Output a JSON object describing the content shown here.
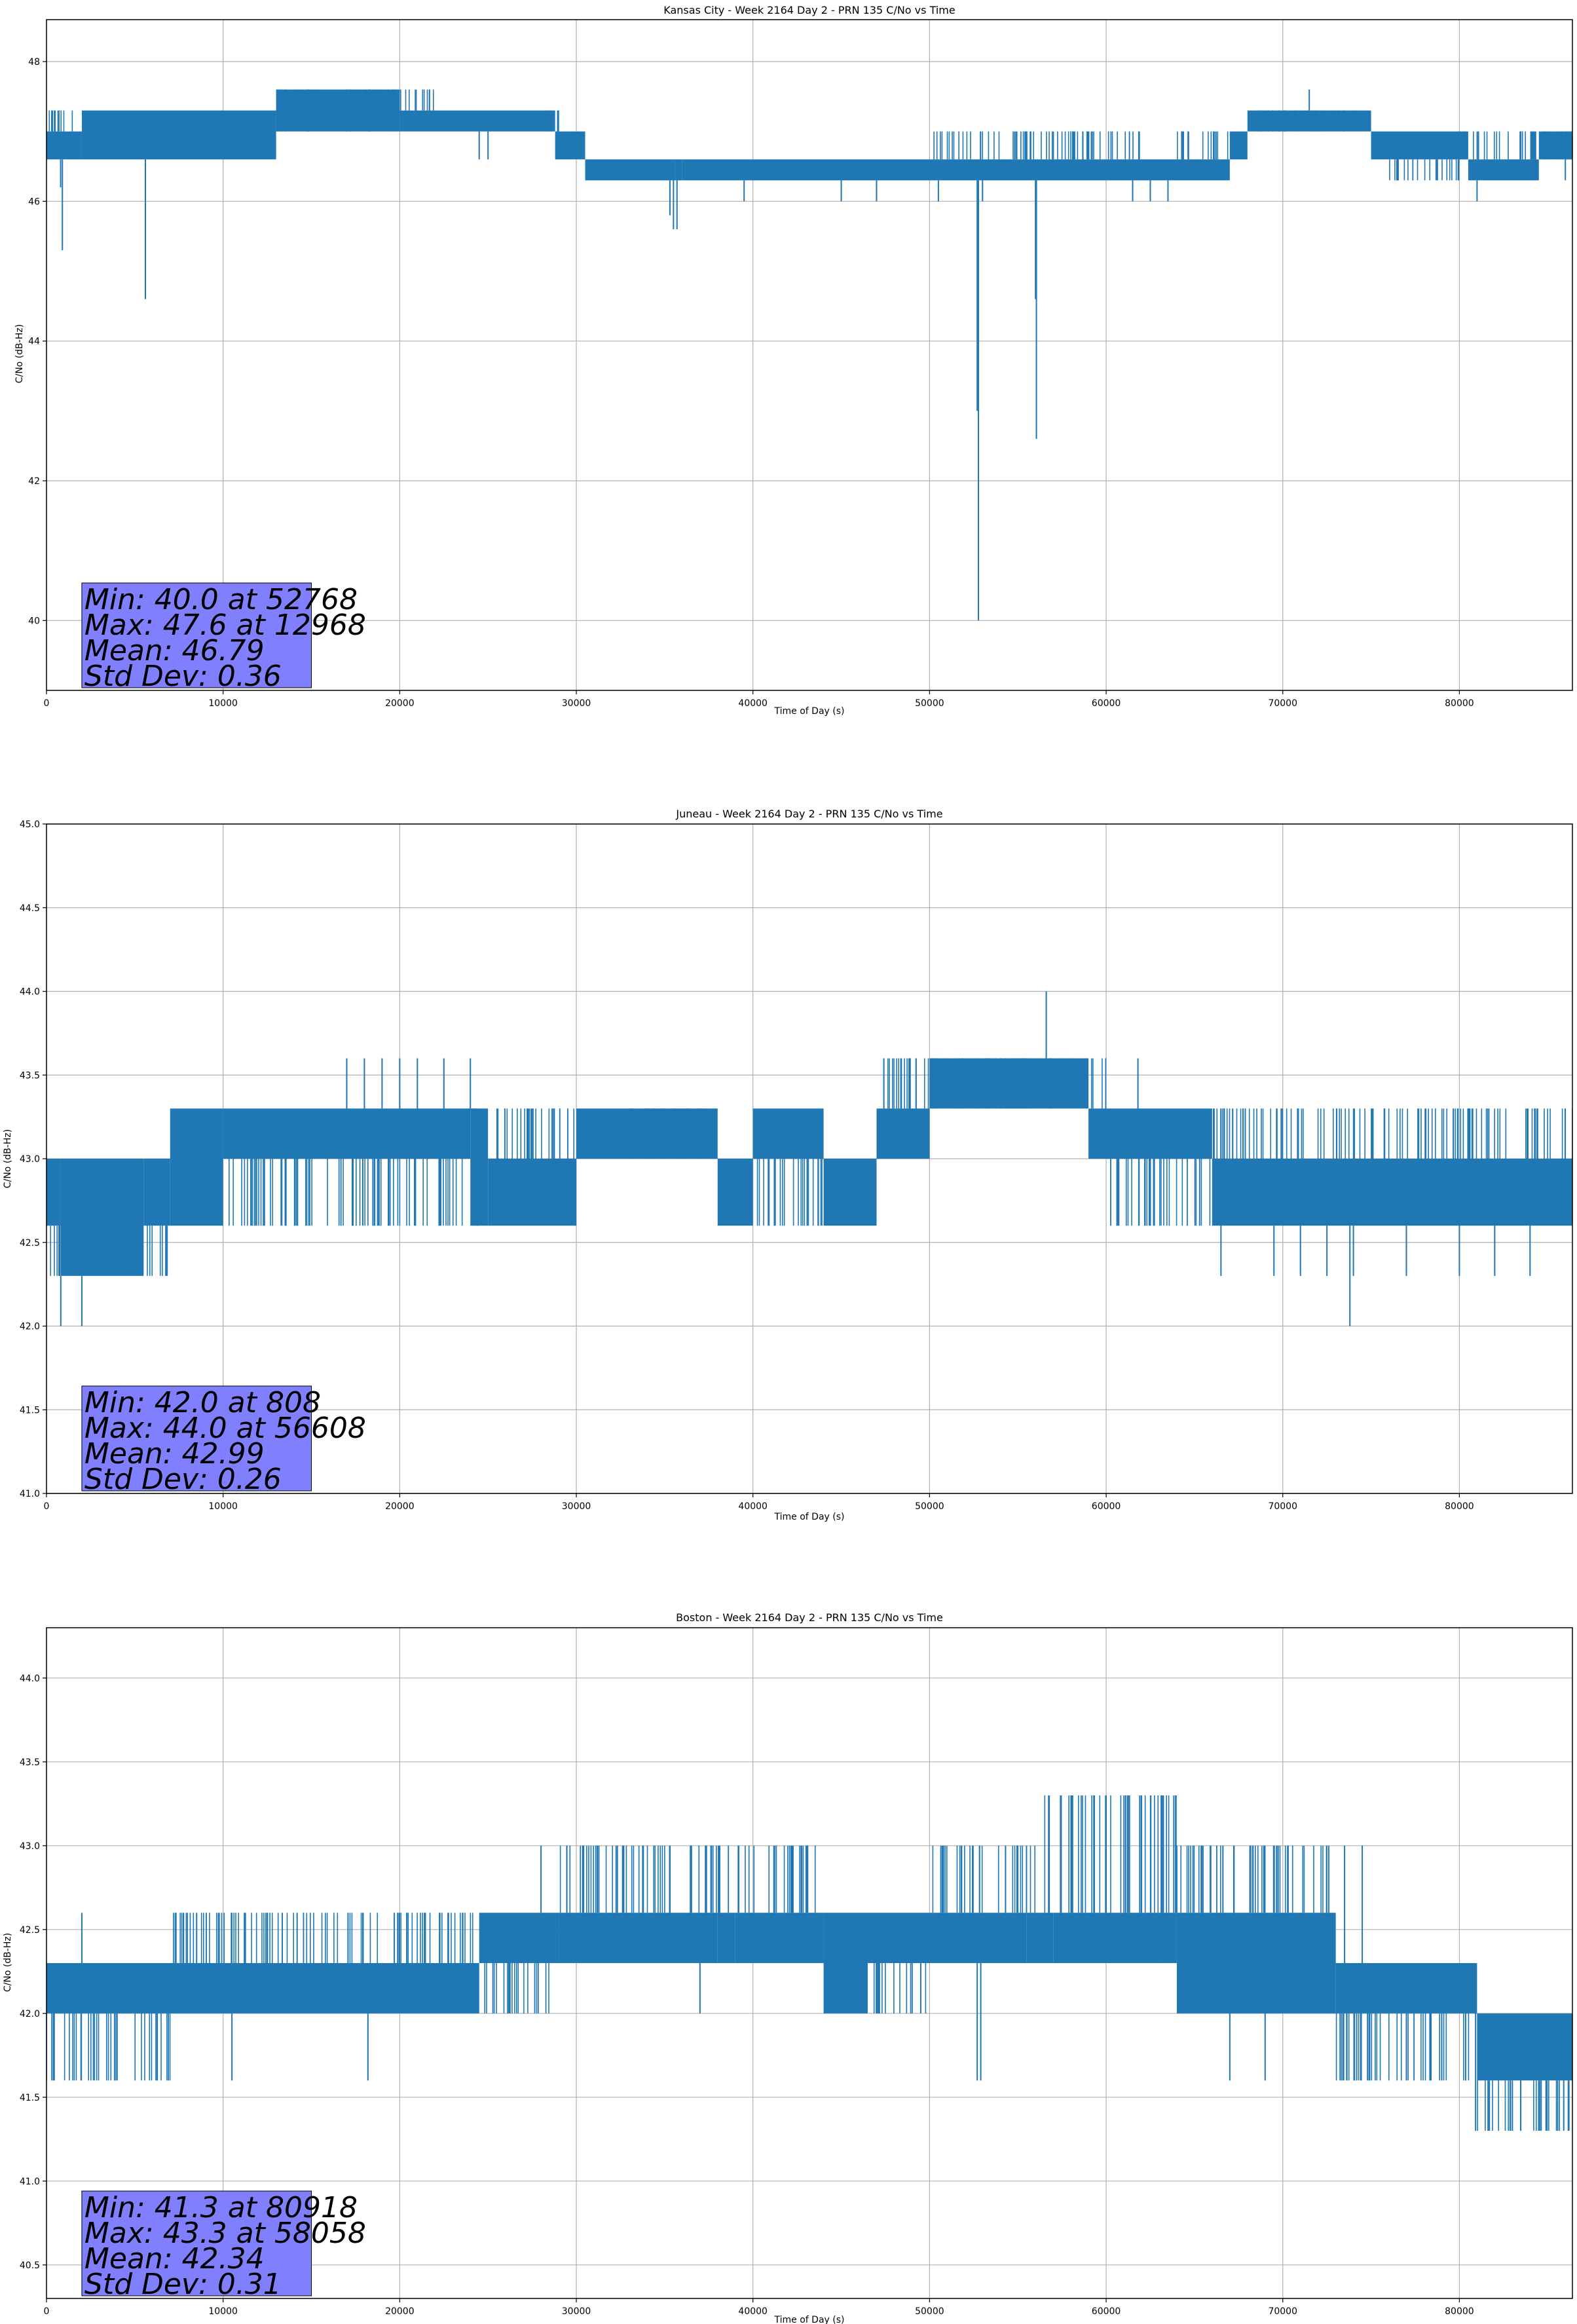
{
  "chart_data": [
    {
      "type": "line",
      "title": "Kansas City - Week 2164 Day 2 - PRN 135 C/No vs Time",
      "xlabel": "Time of Day (s)",
      "ylabel": "C/No (dB-Hz)",
      "xlim": [
        0,
        86400
      ],
      "ylim": [
        39.0,
        48.6
      ],
      "xticks": [
        0,
        10000,
        20000,
        30000,
        40000,
        50000,
        60000,
        70000,
        80000
      ],
      "yticks": [
        40,
        42,
        44,
        46,
        48
      ],
      "ytick_labels": [
        "40",
        "42",
        "44",
        "46",
        "48"
      ],
      "grid": true,
      "series_color": "#1f77b4",
      "stats_box_color": "#8080ff",
      "stats": [
        "Min: 40.0 at 52768",
        "Max: 47.6 at 12968",
        "Mean: 46.79",
        "Std Dev: 0.36"
      ],
      "series": [
        {
          "segments": [
            [
              0,
              46.6,
              47.0
            ],
            [
              2000,
              46.6,
              47.3
            ],
            [
              13000,
              47.0,
              47.6
            ],
            [
              20000,
              47.0,
              47.3
            ],
            [
              28800,
              46.6,
              47.0
            ],
            [
              30500,
              46.3,
              46.6
            ],
            [
              35600,
              46.3,
              46.6
            ],
            [
              36000,
              46.3,
              46.6
            ],
            [
              60000,
              46.3,
              46.6
            ],
            [
              62000,
              46.3,
              46.6
            ],
            [
              67000,
              46.6,
              47.0
            ],
            [
              68000,
              47.0,
              47.3
            ],
            [
              75000,
              46.6,
              47.0
            ],
            [
              80500,
              46.3,
              46.6
            ],
            [
              84500,
              46.6,
              47.0
            ],
            [
              86400
            ]
          ],
          "spikes": [
            [
              800,
              46.2
            ],
            [
              900,
              45.3
            ],
            [
              5600,
              44.6
            ],
            [
              6700,
              46.6
            ],
            [
              24500,
              46.6
            ],
            [
              25000,
              46.6
            ],
            [
              35300,
              45.8
            ],
            [
              35500,
              45.6
            ],
            [
              35700,
              45.6
            ],
            [
              39500,
              46.0
            ],
            [
              45000,
              46.0
            ],
            [
              47000,
              46.0
            ],
            [
              50500,
              46.0
            ],
            [
              52700,
              43.0
            ],
            [
              52768,
              40.0
            ],
            [
              53000,
              46.0
            ],
            [
              56000,
              44.6
            ],
            [
              56050,
              42.6
            ],
            [
              61500,
              46.0
            ],
            [
              62500,
              46.0
            ],
            [
              63500,
              46.0
            ],
            [
              64500,
              46.3
            ],
            [
              66500,
              46.3
            ],
            [
              71500,
              47.6
            ],
            [
              76500,
              46.3
            ],
            [
              81000,
              46.0
            ],
            [
              83000,
              46.3
            ],
            [
              86000,
              46.3
            ]
          ],
          "bursts": [
            [
              0,
              2000,
              47.3
            ],
            [
              13000,
              15500,
              47.6
            ],
            [
              16800,
              22000,
              47.6
            ],
            [
              28000,
              29000,
              47.3
            ],
            [
              38000,
              49000,
              46.3
            ],
            [
              50000,
              62000,
              47.0
            ],
            [
              64000,
              67000,
              47.0
            ],
            [
              68500,
              74000,
              47.3
            ],
            [
              76000,
              80000,
              46.3
            ],
            [
              80000,
              86400,
              47.0
            ]
          ]
        }
      ]
    },
    {
      "type": "line",
      "title": "Juneau - Week 2164 Day 2 - PRN 135 C/No vs Time",
      "xlabel": "Time of Day (s)",
      "ylabel": "C/No (dB-Hz)",
      "xlim": [
        0,
        86400
      ],
      "ylim": [
        41.0,
        45.0
      ],
      "xticks": [
        0,
        10000,
        20000,
        30000,
        40000,
        50000,
        60000,
        70000,
        80000
      ],
      "yticks": [
        41.0,
        41.5,
        42.0,
        42.5,
        43.0,
        43.5,
        44.0,
        44.5,
        45.0
      ],
      "ytick_labels": [
        "41.0",
        "41.5",
        "42.0",
        "42.5",
        "43.0",
        "43.5",
        "44.0",
        "44.5",
        "45.0"
      ],
      "grid": true,
      "series_color": "#1f77b4",
      "stats_box_color": "#8080ff",
      "stats": [
        "Min: 42.0 at 808",
        "Max: 44.0 at 56608",
        "Mean: 42.99",
        "Std Dev: 0.26"
      ],
      "series": [
        {
          "segments": [
            [
              0,
              42.6,
              43.0
            ],
            [
              800,
              42.3,
              43.0
            ],
            [
              5500,
              42.6,
              43.0
            ],
            [
              7000,
              42.6,
              43.3
            ],
            [
              10000,
              43.0,
              43.3
            ],
            [
              24000,
              42.6,
              43.3
            ],
            [
              25000,
              42.6,
              43.0
            ],
            [
              30000,
              43.0,
              43.3
            ],
            [
              38000,
              42.6,
              43.0
            ],
            [
              40000,
              43.0,
              43.3
            ],
            [
              44000,
              42.6,
              43.0
            ],
            [
              47000,
              43.0,
              43.3
            ],
            [
              50000,
              43.3,
              43.6
            ],
            [
              59000,
              43.0,
              43.3
            ],
            [
              66000,
              42.6,
              43.0
            ],
            [
              86400
            ]
          ],
          "spikes": [
            [
              808,
              42.0
            ],
            [
              2000,
              42.0
            ],
            [
              17000,
              43.6
            ],
            [
              18000,
              43.6
            ],
            [
              19000,
              43.6
            ],
            [
              20000,
              43.6
            ],
            [
              21000,
              43.6
            ],
            [
              22500,
              43.6
            ],
            [
              24000,
              43.6
            ],
            [
              56608,
              44.0
            ],
            [
              61800,
              43.6
            ],
            [
              62500,
              42.6
            ],
            [
              66500,
              42.3
            ],
            [
              69500,
              42.3
            ],
            [
              71000,
              42.3
            ],
            [
              72500,
              42.3
            ],
            [
              73800,
              42.0
            ],
            [
              74000,
              42.3
            ],
            [
              77000,
              42.3
            ],
            [
              80000,
              42.3
            ],
            [
              82000,
              42.3
            ],
            [
              84000,
              42.3
            ]
          ],
          "bursts": [
            [
              0,
              7000,
              42.3
            ],
            [
              7000,
              18000,
              42.6
            ],
            [
              18000,
              24000,
              42.6
            ],
            [
              24000,
              30000,
              43.3
            ],
            [
              33000,
              38000,
              43.3
            ],
            [
              40000,
              47000,
              42.6
            ],
            [
              47000,
              53000,
              43.6
            ],
            [
              53000,
              60000,
              43.6
            ],
            [
              60000,
              66000,
              42.6
            ],
            [
              66000,
              75000,
              43.3
            ],
            [
              75000,
              86400,
              43.3
            ]
          ]
        }
      ]
    },
    {
      "type": "line",
      "title": "Boston - Week 2164 Day 2 - PRN 135 C/No vs Time",
      "xlabel": "Time of Day (s)",
      "ylabel": "C/No (dB-Hz)",
      "xlim": [
        0,
        86400
      ],
      "ylim": [
        40.3,
        44.3
      ],
      "xticks": [
        0,
        10000,
        20000,
        30000,
        40000,
        50000,
        60000,
        70000,
        80000
      ],
      "yticks": [
        40.5,
        41.0,
        41.5,
        42.0,
        42.5,
        43.0,
        43.5,
        44.0
      ],
      "ytick_labels": [
        "40.5",
        "41.0",
        "41.5",
        "42.0",
        "42.5",
        "43.0",
        "43.5",
        "44.0"
      ],
      "grid": true,
      "series_color": "#1f77b4",
      "stats_box_color": "#8080ff",
      "stats": [
        "Min: 41.3 at 80918",
        "Max: 43.3 at 58058",
        "Mean: 42.34",
        "Std Dev: 0.31"
      ],
      "series": [
        {
          "segments": [
            [
              0,
              42.0,
              42.3
            ],
            [
              24500,
              42.3,
              42.6
            ],
            [
              29000,
              42.3,
              42.6
            ],
            [
              30000,
              42.3,
              42.6
            ],
            [
              38000,
              42.3,
              42.6
            ],
            [
              39000,
              42.3,
              42.6
            ],
            [
              44000,
              42.0,
              42.6
            ],
            [
              46500,
              42.3,
              42.6
            ],
            [
              55500,
              42.3,
              42.6
            ],
            [
              57000,
              42.3,
              42.6
            ],
            [
              63000,
              42.3,
              42.6
            ],
            [
              64000,
              42.0,
              42.6
            ],
            [
              73000,
              42.0,
              42.3
            ],
            [
              81000,
              41.6,
              42.0
            ],
            [
              86400
            ]
          ],
          "spikes": [
            [
              2000,
              42.6
            ],
            [
              8500,
              42.6
            ],
            [
              10500,
              41.6
            ],
            [
              18200,
              41.6
            ],
            [
              28000,
              43.0
            ],
            [
              36500,
              43.0
            ],
            [
              37000,
              42.0
            ],
            [
              49500,
              42.0
            ],
            [
              52700,
              41.6
            ],
            [
              52900,
              41.6
            ],
            [
              58058,
              43.3
            ],
            [
              60000,
              43.3
            ],
            [
              62000,
              43.3
            ],
            [
              67000,
              41.6
            ],
            [
              69000,
              41.6
            ],
            [
              73500,
              43.0
            ],
            [
              74500,
              43.0
            ],
            [
              77000,
              41.6
            ],
            [
              79000,
              41.6
            ],
            [
              80918,
              41.3
            ],
            [
              83000,
              41.3
            ],
            [
              84500,
              41.3
            ],
            [
              86200,
              41.3
            ]
          ],
          "bursts": [
            [
              0,
              7000,
              41.6
            ],
            [
              7000,
              24500,
              42.6
            ],
            [
              24500,
              28500,
              42.0
            ],
            [
              28500,
              44000,
              43.0
            ],
            [
              44000,
              50000,
              42.0
            ],
            [
              50000,
              56000,
              43.0
            ],
            [
              56000,
              64000,
              43.3
            ],
            [
              64000,
              73000,
              43.0
            ],
            [
              73000,
              81000,
              41.6
            ],
            [
              81000,
              86400,
              41.3
            ]
          ]
        }
      ]
    }
  ]
}
